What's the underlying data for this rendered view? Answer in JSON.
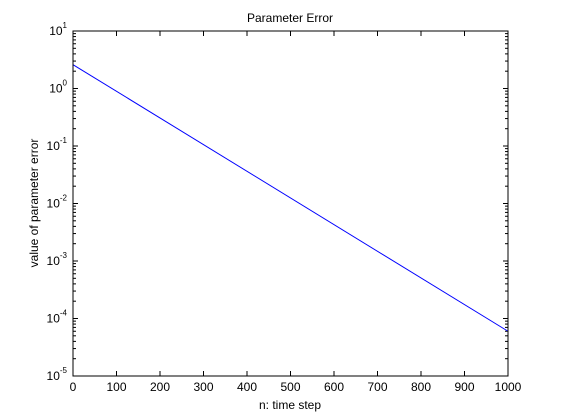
{
  "chart_data": {
    "type": "line",
    "title": "Parameter Error",
    "xlabel": "n: time step",
    "ylabel": "value of parameter error",
    "xlim": [
      0,
      1000
    ],
    "ylim": [
      1e-05,
      10
    ],
    "yscale": "log",
    "grid": false,
    "x_ticks": [
      "0",
      "100",
      "200",
      "300",
      "400",
      "500",
      "600",
      "700",
      "800",
      "900",
      "1000"
    ],
    "y_ticks": [
      {
        "base": "10",
        "exp": "1"
      },
      {
        "base": "10",
        "exp": "0"
      },
      {
        "base": "10",
        "exp": "-1"
      },
      {
        "base": "10",
        "exp": "-2"
      },
      {
        "base": "10",
        "exp": "-3"
      },
      {
        "base": "10",
        "exp": "-4"
      },
      {
        "base": "10",
        "exp": "-5"
      }
    ],
    "series": [
      {
        "color": "#0000ff",
        "x": [
          0,
          1000
        ],
        "y": [
          2.6,
          6e-05
        ]
      }
    ]
  }
}
